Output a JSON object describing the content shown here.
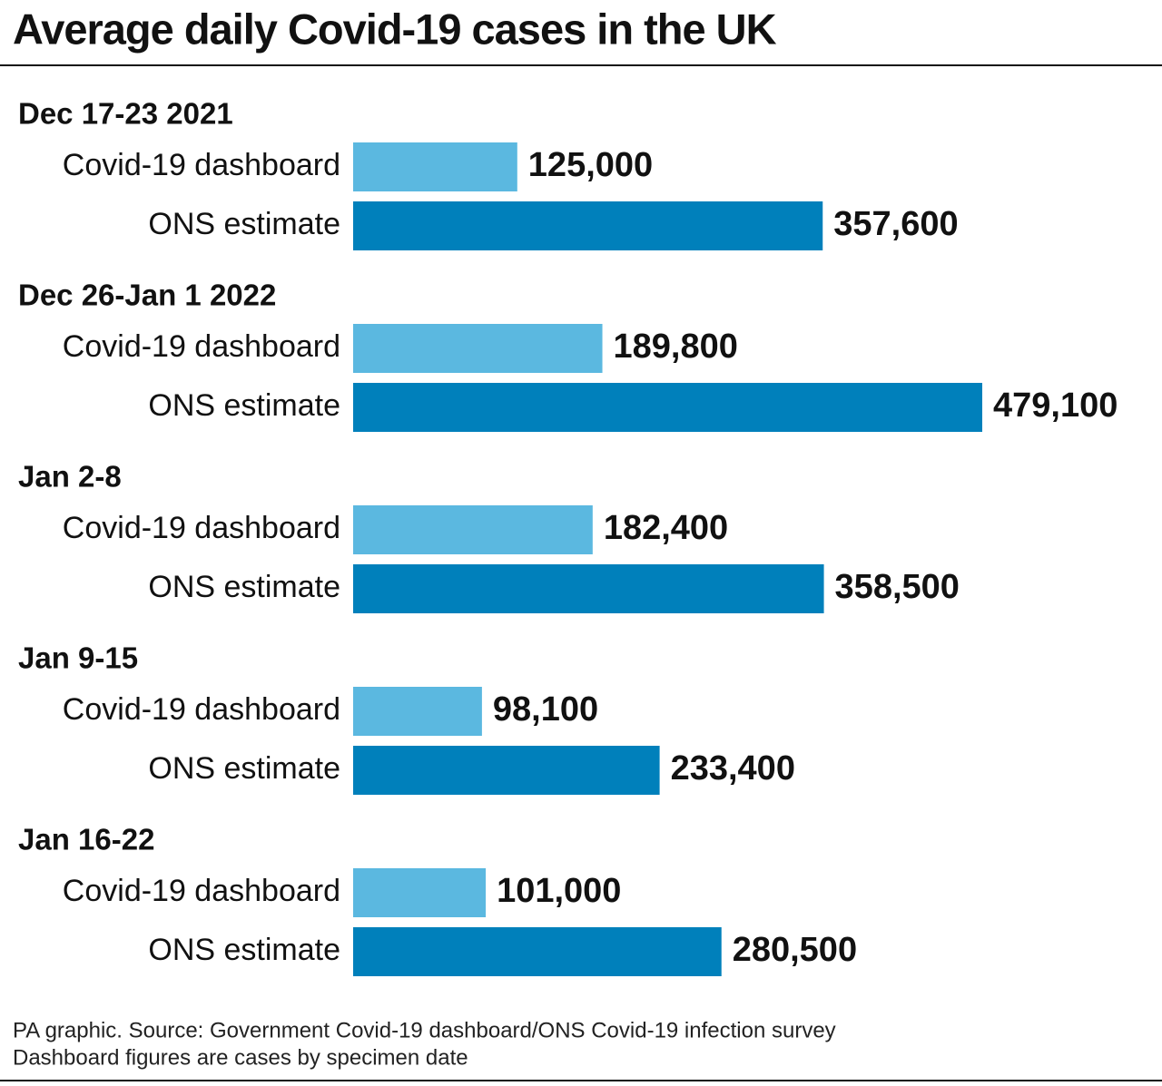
{
  "chart_data": {
    "type": "bar",
    "orientation": "horizontal",
    "title": "Average daily Covid-19 cases in the UK",
    "categories": [
      "Dec 17-23 2021",
      "Dec 26-Jan 1 2022",
      "Jan 2-8",
      "Jan 9-15",
      "Jan 16-22"
    ],
    "series": [
      {
        "name": "Covid-19 dashboard",
        "color": "#5bb8e0",
        "values": [
          125000,
          189800,
          182400,
          98100,
          101000
        ],
        "value_labels": [
          "125,000",
          "189,800",
          "182,400",
          "98,100",
          "101,000"
        ]
      },
      {
        "name": "ONS estimate",
        "color": "#0080bb",
        "values": [
          357600,
          479100,
          358500,
          233400,
          280500
        ],
        "value_labels": [
          "357,600",
          "479,100",
          "358,500",
          "233,400",
          "280,500"
        ]
      }
    ],
    "footnotes": [
      "PA graphic. Source: Government Covid-19 dashboard/ONS Covid-19 infection survey",
      "Dashboard figures are cases by specimen date"
    ]
  }
}
